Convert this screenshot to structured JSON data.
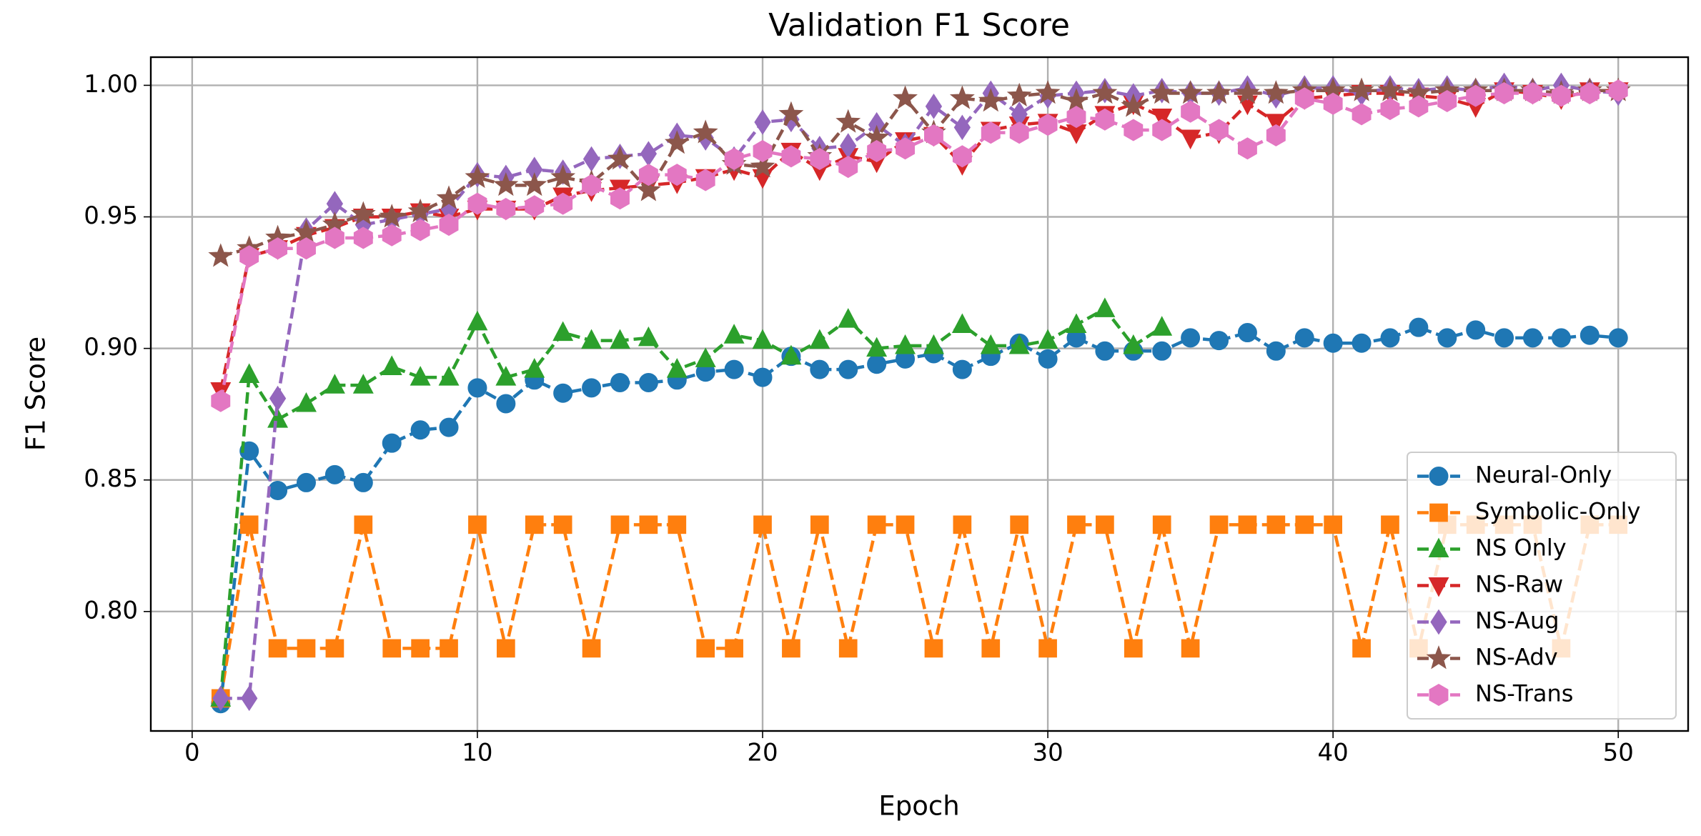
{
  "chart_data": {
    "type": "line",
    "title": "Validation F1 Score",
    "xlabel": "Epoch",
    "ylabel": "F1 Score",
    "x": [
      1,
      2,
      3,
      4,
      5,
      6,
      7,
      8,
      9,
      10,
      11,
      12,
      13,
      14,
      15,
      16,
      17,
      18,
      19,
      20,
      21,
      22,
      23,
      24,
      25,
      26,
      27,
      28,
      29,
      30,
      31,
      32,
      33,
      34,
      35,
      36,
      37,
      38,
      39,
      40,
      41,
      42,
      43,
      44,
      45,
      46,
      47,
      48,
      49,
      50
    ],
    "xlim": [
      -1.45,
      52.45
    ],
    "xticks": [
      0,
      10,
      20,
      30,
      40,
      50
    ],
    "ylim": [
      0.7546,
      1.0107
    ],
    "yticks": [
      {
        "value": 0.8,
        "label": "0.80"
      },
      {
        "value": 0.85,
        "label": "0.85"
      },
      {
        "value": 0.9,
        "label": "0.90"
      },
      {
        "value": 0.95,
        "label": "0.95"
      },
      {
        "value": 1.0,
        "label": "1.00"
      }
    ],
    "grid": true,
    "legend": "lower right",
    "series": [
      {
        "name": "Neural-Only",
        "color": "#1f77b4",
        "marker": "circle",
        "values": [
          0.765,
          0.861,
          0.846,
          0.849,
          0.852,
          0.849,
          0.864,
          0.869,
          0.87,
          0.885,
          0.879,
          0.888,
          0.883,
          0.885,
          0.887,
          0.887,
          0.888,
          0.891,
          0.892,
          0.889,
          0.897,
          0.892,
          0.892,
          0.894,
          0.896,
          0.898,
          0.892,
          0.897,
          0.902,
          0.896,
          0.904,
          0.899,
          0.899,
          0.899,
          0.904,
          0.903,
          0.906,
          0.899,
          0.904,
          0.902,
          0.902,
          0.904,
          0.908,
          0.904,
          0.907,
          0.904,
          0.904,
          0.904,
          0.905,
          0.904
        ]
      },
      {
        "name": "Symbolic-Only",
        "color": "#ff7f0e",
        "marker": "square",
        "values": [
          0.767,
          0.833,
          0.786,
          0.786,
          0.786,
          0.833,
          0.786,
          0.786,
          0.786,
          0.833,
          0.786,
          0.833,
          0.833,
          0.786,
          0.833,
          0.833,
          0.833,
          0.786,
          0.786,
          0.833,
          0.786,
          0.833,
          0.786,
          0.833,
          0.833,
          0.786,
          0.833,
          0.786,
          0.833,
          0.786,
          0.833,
          0.833,
          0.786,
          0.833,
          0.786,
          0.833,
          0.833,
          0.833,
          0.833,
          0.833,
          0.786,
          0.833,
          0.786,
          0.833,
          0.833,
          0.833,
          0.833,
          0.786,
          0.833,
          0.833
        ]
      },
      {
        "name": "NS Only",
        "color": "#2ca02c",
        "marker": "triangle-up",
        "values": [
          0.767,
          0.89,
          0.873,
          0.879,
          0.886,
          0.886,
          0.893,
          0.889,
          0.889,
          0.91,
          0.889,
          0.892,
          0.906,
          0.903,
          0.903,
          0.904,
          0.892,
          0.896,
          0.905,
          0.903,
          0.897,
          0.903,
          0.911,
          0.9,
          0.901,
          0.901,
          0.909,
          0.901,
          0.901,
          0.903,
          0.909,
          0.915,
          0.901,
          0.908,
          null,
          null,
          null,
          null,
          null,
          null,
          null,
          null,
          null,
          null,
          null,
          null,
          null,
          null,
          null,
          null
        ]
      },
      {
        "name": "NS-Raw",
        "color": "#d62728",
        "marker": "triangle-down",
        "values": [
          0.884,
          0.935,
          0.938,
          0.943,
          0.946,
          0.95,
          0.95,
          0.952,
          0.95,
          0.953,
          0.953,
          0.953,
          0.958,
          0.96,
          0.961,
          0.962,
          0.963,
          0.965,
          0.968,
          0.965,
          0.975,
          0.968,
          0.973,
          0.971,
          0.979,
          0.981,
          0.97,
          0.983,
          0.985,
          0.986,
          0.982,
          0.989,
          0.993,
          0.988,
          0.98,
          0.982,
          0.993,
          0.986,
          0.995,
          0.996,
          0.997,
          0.997,
          0.996,
          0.995,
          0.992,
          0.998,
          0.997,
          0.995,
          0.998,
          0.998
        ]
      },
      {
        "name": "NS-Aug",
        "color": "#9467bd",
        "marker": "diamond",
        "values": [
          0.767,
          0.767,
          0.881,
          0.945,
          0.955,
          0.947,
          0.949,
          0.951,
          0.953,
          0.966,
          0.965,
          0.968,
          0.967,
          0.972,
          0.973,
          0.974,
          0.981,
          0.98,
          0.972,
          0.986,
          0.987,
          0.976,
          0.977,
          0.985,
          0.977,
          0.992,
          0.984,
          0.997,
          0.989,
          0.996,
          0.997,
          0.998,
          0.996,
          0.998,
          0.997,
          0.997,
          0.999,
          0.996,
          0.999,
          0.999,
          0.997,
          0.999,
          0.998,
          0.999,
          0.998,
          1.0,
          0.998,
          1.0,
          0.998,
          0.997
        ]
      },
      {
        "name": "NS-Adv",
        "color": "#8c564b",
        "marker": "star",
        "values": [
          0.935,
          0.938,
          0.942,
          0.944,
          0.947,
          0.951,
          0.95,
          0.952,
          0.957,
          0.965,
          0.962,
          0.962,
          0.965,
          0.963,
          0.972,
          0.96,
          0.978,
          0.982,
          0.97,
          0.969,
          0.989,
          0.973,
          0.986,
          0.98,
          0.995,
          0.982,
          0.995,
          0.994,
          0.996,
          0.997,
          0.994,
          0.997,
          0.992,
          0.997,
          0.997,
          0.997,
          0.997,
          0.997,
          0.998,
          0.998,
          0.998,
          0.998,
          0.997,
          0.998,
          0.998,
          0.998,
          0.998,
          0.997,
          0.998,
          0.998
        ]
      },
      {
        "name": "NS-Trans",
        "color": "#e377c2",
        "marker": "hexagon",
        "values": [
          0.88,
          0.935,
          0.938,
          0.938,
          0.942,
          0.942,
          0.943,
          0.945,
          0.947,
          0.955,
          0.953,
          0.954,
          0.955,
          0.962,
          0.957,
          0.966,
          0.966,
          0.964,
          0.972,
          0.975,
          0.973,
          0.972,
          0.969,
          0.975,
          0.976,
          0.981,
          0.973,
          0.982,
          0.982,
          0.985,
          0.988,
          0.987,
          0.983,
          0.983,
          0.99,
          0.983,
          0.976,
          0.981,
          0.995,
          0.993,
          0.989,
          0.991,
          0.992,
          0.994,
          0.996,
          0.997,
          0.997,
          0.996,
          0.997,
          0.998
        ]
      }
    ]
  }
}
